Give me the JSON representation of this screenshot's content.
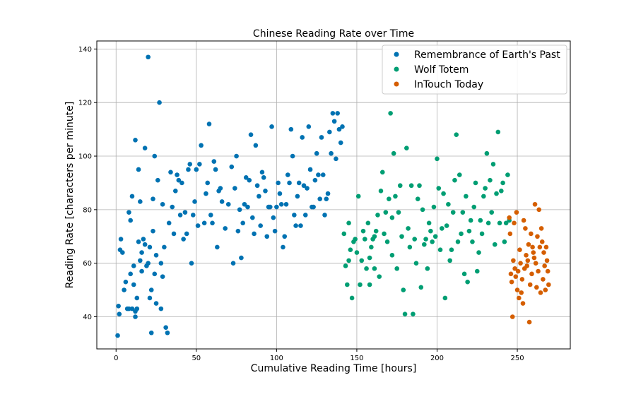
{
  "chart_data": {
    "type": "scatter",
    "title": "Chinese Reading Rate over Time",
    "xlabel": "Cumulative Reading Time [hours]",
    "ylabel": "Reading Rate [characters per minute]",
    "xlim": [
      -12,
      283
    ],
    "ylim": [
      28,
      143
    ],
    "xticks": [
      0,
      50,
      100,
      150,
      200,
      250
    ],
    "yticks": [
      40,
      60,
      80,
      100,
      120,
      140
    ],
    "grid": true,
    "legend_position": "top-right",
    "series": [
      {
        "name": "Remembrance of Earth's Past",
        "color": "#0072b2",
        "x": [
          1,
          1.5,
          2,
          2.5,
          3,
          4,
          5,
          6,
          7,
          8,
          8,
          9,
          9,
          10,
          10,
          11,
          11,
          12,
          12,
          12,
          13,
          13,
          14,
          14,
          15,
          15,
          16,
          16,
          17,
          18,
          18,
          19,
          20,
          20,
          21,
          21,
          22,
          22,
          23,
          23,
          24,
          24,
          25,
          25,
          26,
          27,
          28,
          28,
          29,
          29,
          30,
          31,
          32,
          33,
          34,
          35,
          36,
          37,
          38,
          39,
          40,
          41,
          42,
          43,
          44,
          45,
          46,
          47,
          48,
          49,
          50,
          51,
          52,
          53,
          55,
          56,
          57,
          58,
          59,
          60,
          61,
          62,
          63,
          64,
          65,
          66,
          68,
          70,
          72,
          73,
          74,
          75,
          76,
          77,
          78,
          79,
          80,
          81,
          82,
          83,
          84,
          85,
          86,
          87,
          88,
          89,
          90,
          91,
          92,
          93,
          94,
          95,
          96,
          97,
          98,
          99,
          100,
          101,
          102,
          103,
          104,
          105,
          106,
          107,
          108,
          109,
          110,
          111,
          112,
          113,
          114,
          115,
          116,
          117,
          118,
          119,
          120,
          121,
          122,
          123,
          124,
          125,
          126,
          127,
          128,
          129,
          130,
          131,
          132,
          133,
          134,
          135,
          136,
          137,
          138,
          139,
          140,
          141
        ],
        "y": [
          33,
          44,
          41,
          65,
          69,
          64,
          50,
          53,
          43,
          79,
          43,
          76,
          56,
          85,
          43,
          52,
          59,
          42,
          106,
          40,
          47,
          43,
          95,
          68,
          61,
          83,
          57,
          64,
          69,
          103,
          67,
          59,
          60,
          137,
          66,
          47,
          50,
          34,
          72,
          84,
          100,
          56,
          63,
          45,
          91,
          120,
          60,
          43,
          55,
          82,
          66,
          36,
          34,
          75,
          94,
          81,
          71,
          87,
          93,
          91,
          78,
          90,
          69,
          79,
          71,
          95,
          97,
          60,
          78,
          83,
          95,
          74,
          97,
          104,
          75,
          86,
          90,
          112,
          78,
          75,
          98,
          95,
          66,
          87,
          88,
          83,
          73,
          82,
          96,
          60,
          88,
          100,
          72,
          80,
          62,
          75,
          82,
          92,
          81,
          91,
          108,
          77,
          71,
          104,
          89,
          85,
          74,
          94,
          92,
          87,
          70,
          81,
          81,
          111,
          77,
          72,
          81,
          90,
          86,
          82,
          66,
          70,
          82,
          93,
          90,
          110,
          100,
          78,
          74,
          85,
          90,
          74,
          107,
          89,
          78,
          88,
          111,
          95,
          81,
          81,
          91,
          101,
          93,
          84,
          107,
          93,
          78,
          84,
          86,
          109,
          101,
          116,
          113,
          99,
          116,
          110,
          105,
          111
        ]
      },
      {
        "name": "Wolf Totem",
        "color": "#009e73",
        "x": [
          142,
          143,
          144,
          145,
          145,
          146,
          147,
          148,
          149,
          150,
          151,
          152,
          153,
          154,
          155,
          156,
          157,
          158,
          158,
          159,
          160,
          161,
          161,
          162,
          163,
          164,
          165,
          166,
          167,
          168,
          169,
          170,
          171,
          172,
          172,
          173,
          174,
          175,
          176,
          177,
          178,
          179,
          180,
          181,
          182,
          183,
          184,
          185,
          186,
          187,
          188,
          189,
          190,
          191,
          192,
          193,
          194,
          195,
          196,
          197,
          198,
          199,
          200,
          201,
          202,
          203,
          204,
          205,
          206,
          207,
          208,
          209,
          210,
          211,
          212,
          213,
          214,
          215,
          216,
          217,
          218,
          219,
          220,
          221,
          222,
          223,
          224,
          225,
          226,
          227,
          228,
          229,
          230,
          231,
          232,
          233,
          234,
          235,
          236,
          237,
          238,
          239,
          240,
          241,
          242,
          243,
          244,
          245
        ],
        "y": [
          71,
          59,
          52,
          75,
          61,
          65,
          47,
          68,
          69,
          64,
          85,
          52,
          61,
          72,
          69,
          58,
          75,
          52,
          62,
          66,
          69,
          70,
          58,
          72,
          78,
          55,
          87,
          94,
          71,
          79,
          68,
          84,
          116,
          77,
          63,
          101,
          85,
          58,
          79,
          89,
          70,
          50,
          41,
          103,
          73,
          66,
          89,
          41,
          69,
          60,
          84,
          89,
          51,
          80,
          67,
          69,
          58,
          75,
          72,
          68,
          81,
          70,
          99,
          88,
          65,
          73,
          86,
          47,
          74,
          82,
          61,
          65,
          79,
          91,
          108,
          68,
          93,
          71,
          79,
          56,
          85,
          53,
          72,
          76,
          68,
          81,
          90,
          57,
          64,
          76,
          71,
          85,
          88,
          101,
          75,
          91,
          79,
          97,
          67,
          86,
          109,
          75,
          87,
          90,
          68,
          75,
          93,
          76
        ]
      },
      {
        "name": "InTouch Today",
        "color": "#d55e00",
        "x": [
          245,
          245.5,
          246,
          246.5,
          247,
          247.5,
          248,
          248.5,
          249,
          249.5,
          250,
          250.5,
          251,
          251.5,
          252,
          252.5,
          253,
          253.5,
          254,
          254.5,
          255,
          255.5,
          256,
          256.5,
          257,
          257.5,
          258,
          258.5,
          259,
          259.5,
          260,
          260.5,
          261,
          261.5,
          262,
          262.5,
          263,
          263.5,
          264,
          264.5,
          265,
          265.5,
          266,
          266.5,
          267,
          267.5,
          268,
          268.5,
          269,
          269.5
        ],
        "y": [
          77,
          71,
          56,
          53,
          40,
          61,
          75,
          58,
          55,
          79,
          50,
          57,
          47,
          65,
          60,
          49,
          54,
          45,
          76,
          58,
          73,
          63,
          59,
          61,
          67,
          38,
          52,
          71,
          56,
          66,
          64,
          62,
          82,
          60,
          51,
          70,
          57,
          80,
          66,
          49,
          73,
          68,
          54,
          64,
          59,
          50,
          66,
          61,
          57,
          52
        ]
      }
    ]
  }
}
